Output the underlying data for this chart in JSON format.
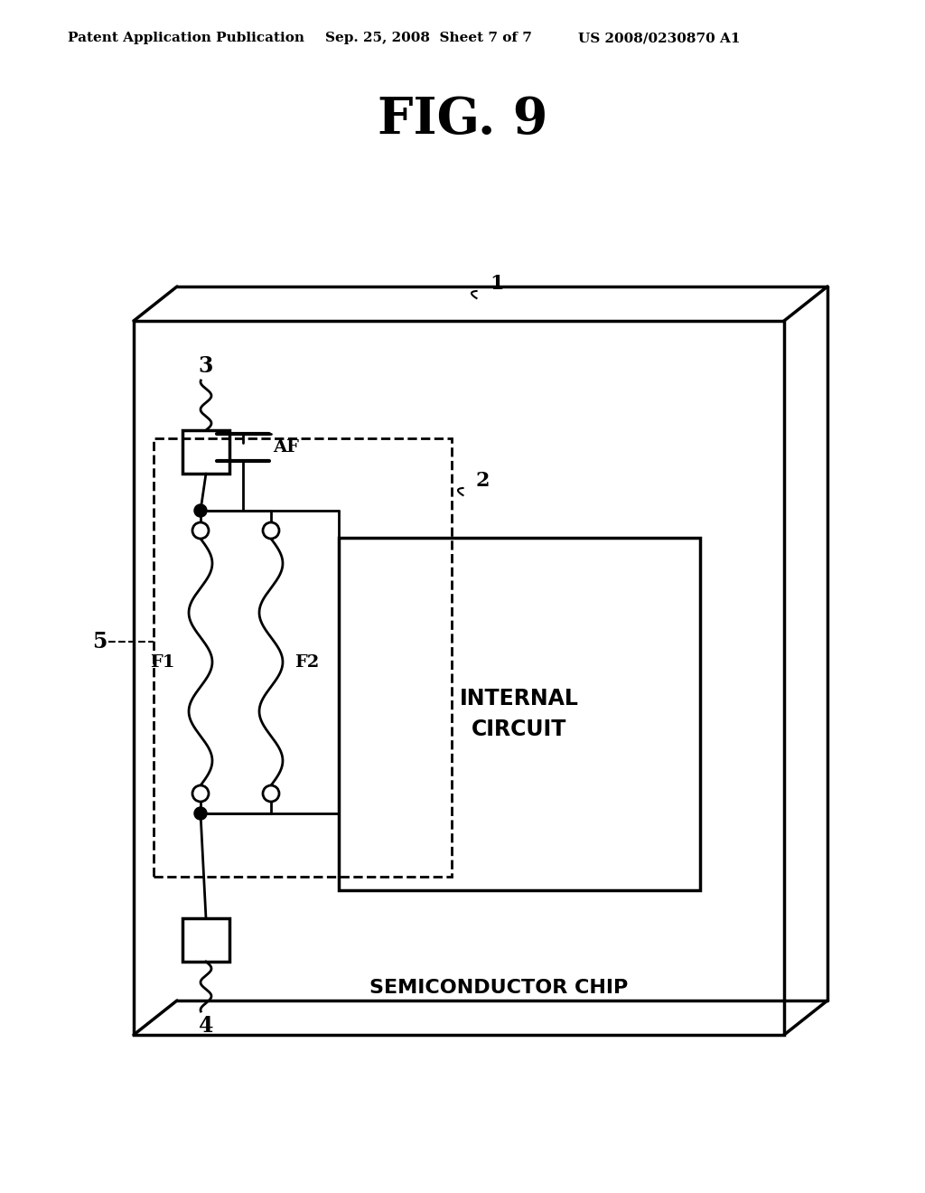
{
  "title": "FIG. 9",
  "header_left": "Patent Application Publication",
  "header_mid": "Sep. 25, 2008  Sheet 7 of 7",
  "header_right": "US 2008/0230870 A1",
  "bg_color": "#ffffff",
  "label_1": "1",
  "label_2": "2",
  "label_3": "3",
  "label_4": "4",
  "label_5": "5",
  "label_AF": "AF",
  "label_F1": "F1",
  "label_F2": "F2",
  "label_internal": "INTERNAL\nCIRCUIT",
  "label_semi": "SEMICONDUCTOR CHIP"
}
